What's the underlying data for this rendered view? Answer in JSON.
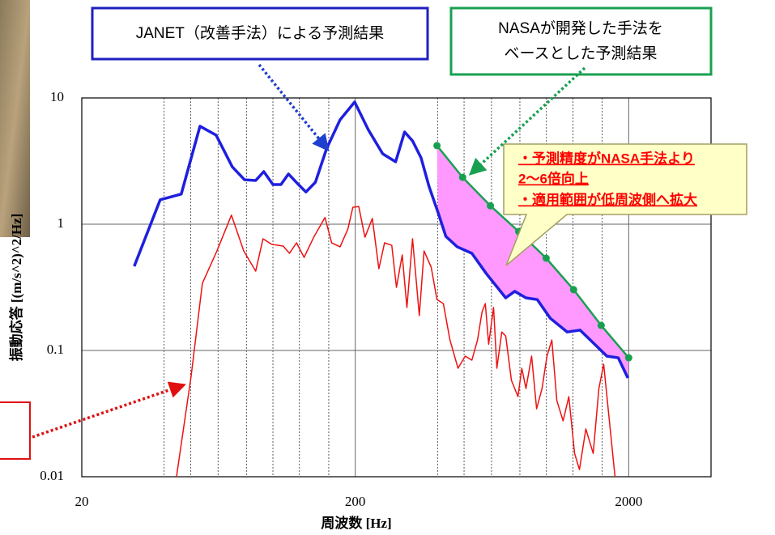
{
  "chart_data": {
    "type": "line",
    "xlabel": "周波数 [Hz]",
    "ylabel": "振動応答 [(m/s^2)^2/Hz]",
    "xscale": "log",
    "yscale": "log",
    "xlim": [
      20,
      4000
    ],
    "ylim": [
      0.01,
      10
    ],
    "xticks": [
      20,
      200,
      2000
    ],
    "yticks": [
      10,
      1,
      0.1,
      0.01
    ],
    "x_minor_grid": [
      40,
      50,
      63,
      80,
      100,
      125,
      160,
      400,
      500,
      630,
      800,
      1000,
      1250,
      1600
    ],
    "grid": true,
    "series": [
      {
        "color": "#1f1fdf",
        "width": 3.5,
        "x": [
          31.1,
          38.7,
          46.2,
          54.1,
          62,
          71,
          78.7,
          86.5,
          92.6,
          100,
          107,
          114,
          124,
          132,
          143,
          157,
          176,
          199,
          223,
          252,
          281,
          303,
          324,
          348,
          372,
          401,
          429,
          472,
          534,
          603,
          710,
          766,
          842,
          926,
          1033,
          1192,
          1328,
          1502,
          1664,
          1831,
          1986
        ],
        "values": [
          0.464,
          1.56,
          1.73,
          5.97,
          5.07,
          2.85,
          2.25,
          2.22,
          2.61,
          2.06,
          2.06,
          2.5,
          2.06,
          1.8,
          2.15,
          3.95,
          6.71,
          9.29,
          5.62,
          3.61,
          3.12,
          5.38,
          4.57,
          3.36,
          2.0,
          1.25,
          0.8,
          0.662,
          0.588,
          0.406,
          0.261,
          0.294,
          0.261,
          0.253,
          0.18,
          0.14,
          0.145,
          0.112,
          0.0902,
          0.0875,
          0.0605
        ]
      },
      {
        "color": "#ee1111",
        "width": 1.5,
        "x": [
          44.4,
          50.2,
          55.2,
          62.4,
          70.5,
          78.2,
          86.5,
          92,
          99,
          109,
          115,
          122,
          130,
          141,
          155,
          164,
          176,
          188,
          196,
          206,
          217,
          231,
          244,
          256,
          272,
          283,
          297,
          309,
          324,
          343,
          357,
          379,
          398,
          420,
          444,
          475,
          505,
          534,
          560,
          582,
          598,
          615,
          641,
          659,
          687,
          710,
          745,
          787,
          813,
          842,
          883,
          921,
          964,
          1005,
          1047,
          1092,
          1151,
          1208,
          1268,
          1321,
          1394,
          1483,
          1556,
          1620,
          1688,
          1782
        ],
        "values": [
          0.01,
          0.0623,
          0.34,
          0.614,
          1.18,
          0.614,
          0.425,
          0.767,
          0.692,
          0.671,
          0.588,
          0.712,
          0.546,
          0.789,
          1.13,
          0.712,
          0.662,
          0.916,
          1.36,
          1.38,
          0.789,
          1.11,
          0.444,
          0.712,
          0.681,
          0.316,
          0.571,
          0.219,
          0.767,
          0.189,
          0.614,
          0.457,
          0.253,
          0.235,
          0.121,
          0.0723,
          0.0902,
          0.0838,
          0.121,
          0.203,
          0.235,
          0.112,
          0.219,
          0.0723,
          0.14,
          0.13,
          0.0579,
          0.0431,
          0.0723,
          0.05,
          0.0902,
          0.0345,
          0.05,
          0.0902,
          0.121,
          0.0401,
          0.0277,
          0.0431,
          0.0153,
          0.0114,
          0.0239,
          0.0153,
          0.05,
          0.0778,
          0.0321,
          0.01
        ]
      },
      {
        "color": "#18a050",
        "width": 2.5,
        "markers": true,
        "x": [
          398,
          494,
          624,
          792,
          998,
          1258,
          1586,
          2000
        ],
        "values": [
          4.19,
          2.35,
          1.4,
          0.875,
          0.538,
          0.303,
          0.158,
          0.0875
        ]
      }
    ],
    "band": {
      "between": [
        2,
        0
      ],
      "color": "#ff99ff"
    }
  },
  "annotations": {
    "janet": "JANET（改善手法）による予測結果",
    "nasa": [
      "NASAが開発した手法を",
      "ベースとした予測結果"
    ],
    "improvement": [
      "・予測精度がNASA手法より",
      "2～6倍向上",
      "・適用範囲が低周波側へ拡大"
    ]
  }
}
